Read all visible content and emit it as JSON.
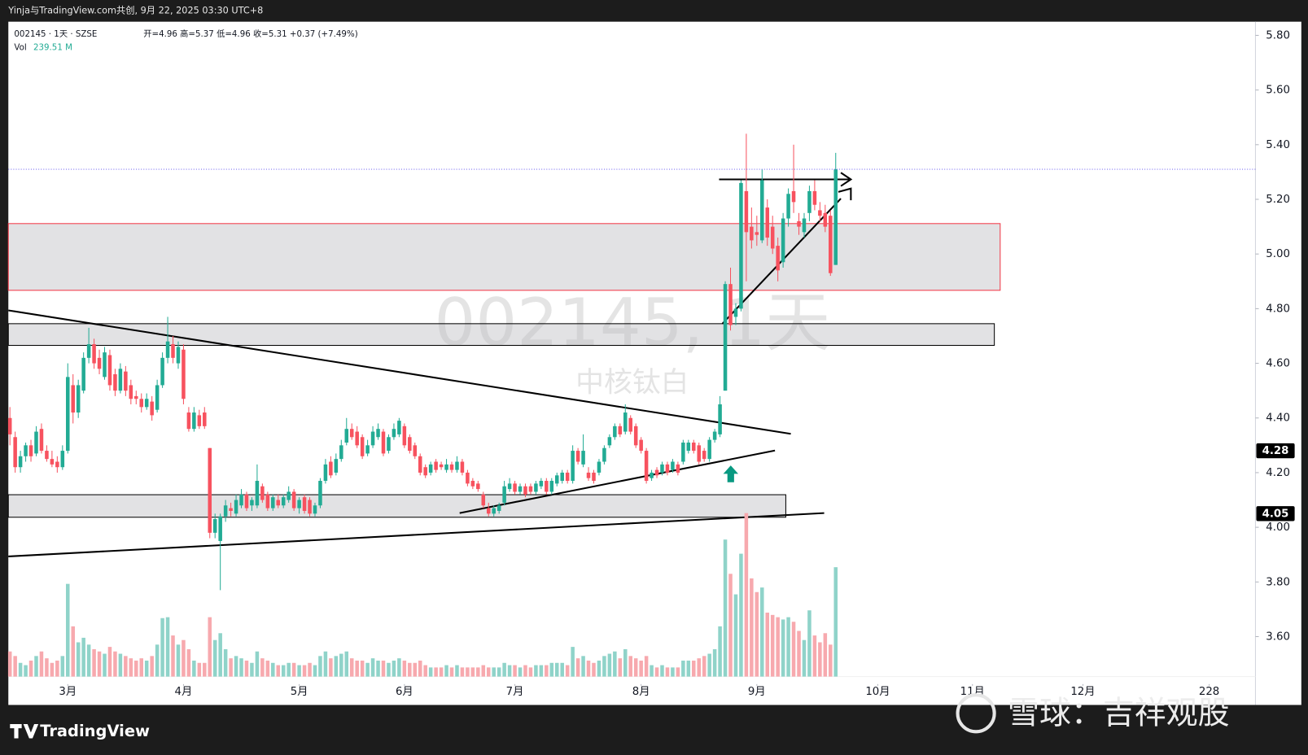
{
  "header": {
    "credit": "Yinja与TradingView.com共创, 9月 22, 2025 03:30 UTC+8"
  },
  "chart_data": {
    "type": "candlestick",
    "symbol_line": "002145 · 1天 · SZSE",
    "ohlc_line": "开=4.96 高=5.37 低=4.96 收=5.31 +0.37 (+7.49%)",
    "volume_name": "Vol",
    "volume_label": "239.51 M",
    "watermark": "002145, 1天",
    "watermark_name": "中核钛白",
    "up_color": "#22ab94",
    "down_color": "#f7525f",
    "up_volume_color": "#8fd3c9",
    "down_volume_color": "#f7a9ae",
    "grid": false,
    "open": [
      4.4,
      4.33,
      4.22,
      4.26,
      4.3,
      4.27,
      4.36,
      4.28,
      4.25,
      4.24,
      4.22,
      4.28,
      4.52,
      4.42,
      4.5,
      4.62,
      4.67,
      4.62,
      4.55,
      4.63,
      4.56,
      4.5,
      4.57,
      4.52,
      4.48,
      4.47,
      4.44,
      4.46,
      4.43,
      4.52,
      4.62,
      4.67,
      4.6,
      4.65,
      4.42,
      4.36,
      4.41,
      4.42,
      4.29,
      3.98,
      3.95,
      4.04,
      4.07,
      4.05,
      4.08,
      4.12,
      4.08,
      4.08,
      4.15,
      4.12,
      4.07,
      4.1,
      4.08,
      4.1,
      4.13,
      4.07,
      4.11,
      4.1,
      4.05,
      4.08,
      4.17,
      4.24,
      4.2,
      4.25,
      4.31,
      4.36,
      4.35,
      4.33,
      4.27,
      4.3,
      4.33,
      4.35,
      4.28,
      4.33,
      4.34,
      4.37,
      4.33,
      4.3,
      4.26,
      4.22,
      4.2,
      4.24,
      4.23,
      4.21,
      4.23,
      4.21,
      4.24,
      4.2,
      4.17,
      4.16,
      4.12,
      4.07,
      4.05,
      4.06,
      4.09,
      4.14,
      4.16,
      4.13,
      4.15,
      4.15,
      4.13,
      4.15,
      4.17,
      4.13,
      4.16,
      4.17,
      4.2,
      4.17,
      4.28,
      4.23,
      4.2,
      4.2,
      4.2,
      4.24,
      4.3,
      4.33,
      4.37,
      4.35,
      4.4,
      4.37,
      4.32,
      4.28,
      4.18,
      4.21,
      4.2,
      4.23,
      4.21,
      4.23,
      4.24,
      4.28,
      4.31,
      4.3,
      4.28,
      4.25,
      4.32,
      4.34,
      4.5,
      4.89,
      4.77,
      4.8,
      5.23,
      5.1,
      5.08,
      5.05,
      5.17,
      5.1,
      5.03,
      4.97,
      5.13,
      5.23,
      5.12,
      5.08,
      5.15,
      5.23,
      5.16,
      5.15,
      5.14,
      4.96
    ],
    "high": [
      4.44,
      4.35,
      4.28,
      4.31,
      4.32,
      4.37,
      4.38,
      4.3,
      4.28,
      4.26,
      4.3,
      4.6,
      4.56,
      4.54,
      4.64,
      4.73,
      4.69,
      4.65,
      4.66,
      4.65,
      4.58,
      4.6,
      4.59,
      4.54,
      4.5,
      4.49,
      4.49,
      4.48,
      4.54,
      4.64,
      4.77,
      4.7,
      4.68,
      4.67,
      4.44,
      4.44,
      4.43,
      4.44,
      4.29,
      4.05,
      4.05,
      4.1,
      4.09,
      4.12,
      4.14,
      4.13,
      4.11,
      4.23,
      4.16,
      4.13,
      4.12,
      4.12,
      4.12,
      4.15,
      4.14,
      4.11,
      4.12,
      4.11,
      4.09,
      4.18,
      4.25,
      4.26,
      4.27,
      4.32,
      4.4,
      4.38,
      4.37,
      4.34,
      4.32,
      4.37,
      4.38,
      4.36,
      4.34,
      4.38,
      4.4,
      4.38,
      4.34,
      4.31,
      4.27,
      4.23,
      4.24,
      4.25,
      4.24,
      4.25,
      4.24,
      4.26,
      4.25,
      4.21,
      4.18,
      4.17,
      4.13,
      4.09,
      4.08,
      4.09,
      4.17,
      4.18,
      4.17,
      4.16,
      4.16,
      4.16,
      4.17,
      4.18,
      4.18,
      4.18,
      4.2,
      4.21,
      4.21,
      4.3,
      4.29,
      4.34,
      4.22,
      4.21,
      4.25,
      4.3,
      4.34,
      4.38,
      4.38,
      4.45,
      4.41,
      4.38,
      4.33,
      4.29,
      4.21,
      4.22,
      4.24,
      4.24,
      4.25,
      4.24,
      4.32,
      4.32,
      4.32,
      4.31,
      4.29,
      4.33,
      4.36,
      4.48,
      4.9,
      4.95,
      4.82,
      5.27,
      5.44,
      5.17,
      5.14,
      5.31,
      5.2,
      5.14,
      5.06,
      5.15,
      5.24,
      5.4,
      5.15,
      5.15,
      5.25,
      5.27,
      5.19,
      5.18,
      5.16,
      5.37
    ],
    "low": [
      4.3,
      4.2,
      4.2,
      4.24,
      4.24,
      4.26,
      4.27,
      4.24,
      4.22,
      4.2,
      4.21,
      4.27,
      4.38,
      4.4,
      4.49,
      4.6,
      4.58,
      4.56,
      4.54,
      4.5,
      4.48,
      4.49,
      4.48,
      4.45,
      4.45,
      4.42,
      4.43,
      4.39,
      4.42,
      4.51,
      4.6,
      4.6,
      4.58,
      4.45,
      4.35,
      4.35,
      4.36,
      4.36,
      3.96,
      3.96,
      3.77,
      4.02,
      4.04,
      4.04,
      4.07,
      4.06,
      4.06,
      4.07,
      4.09,
      4.06,
      4.06,
      4.07,
      4.07,
      4.09,
      4.06,
      4.05,
      4.05,
      4.04,
      4.04,
      4.07,
      4.16,
      4.18,
      4.19,
      4.24,
      4.3,
      4.32,
      4.29,
      4.25,
      4.26,
      4.29,
      4.32,
      4.26,
      4.27,
      4.32,
      4.33,
      4.29,
      4.27,
      4.25,
      4.19,
      4.18,
      4.19,
      4.2,
      4.21,
      4.2,
      4.2,
      4.2,
      4.19,
      4.15,
      4.14,
      4.13,
      4.07,
      4.04,
      4.04,
      4.05,
      4.08,
      4.13,
      4.12,
      4.12,
      4.11,
      4.12,
      4.12,
      4.14,
      4.12,
      4.12,
      4.15,
      4.16,
      4.16,
      4.16,
      4.23,
      4.22,
      4.17,
      4.16,
      4.19,
      4.23,
      4.29,
      4.32,
      4.33,
      4.34,
      4.34,
      4.29,
      4.27,
      4.16,
      4.17,
      4.18,
      4.19,
      4.19,
      4.2,
      4.19,
      4.23,
      4.27,
      4.27,
      4.23,
      4.24,
      4.24,
      4.31,
      4.33,
      4.5,
      4.72,
      4.74,
      4.79,
      4.9,
      5.02,
      5.03,
      5.04,
      5.03,
      5.0,
      4.9,
      4.95,
      5.1,
      5.15,
      5.07,
      5.06,
      5.12,
      5.16,
      5.12,
      5.08,
      4.92,
      4.96
    ],
    "close": [
      4.34,
      4.22,
      4.26,
      4.3,
      4.26,
      4.35,
      4.28,
      4.25,
      4.23,
      4.22,
      4.28,
      4.55,
      4.42,
      4.52,
      4.62,
      4.67,
      4.6,
      4.58,
      4.64,
      4.52,
      4.5,
      4.58,
      4.5,
      4.47,
      4.47,
      4.44,
      4.47,
      4.41,
      4.52,
      4.62,
      4.68,
      4.62,
      4.66,
      4.47,
      4.36,
      4.42,
      4.37,
      4.37,
      3.98,
      4.03,
      4.04,
      4.08,
      4.06,
      4.1,
      4.12,
      4.07,
      4.1,
      4.17,
      4.1,
      4.07,
      4.11,
      4.08,
      4.11,
      4.13,
      4.07,
      4.1,
      4.06,
      4.05,
      4.08,
      4.17,
      4.23,
      4.19,
      4.25,
      4.3,
      4.36,
      4.33,
      4.3,
      4.26,
      4.3,
      4.35,
      4.36,
      4.27,
      4.33,
      4.36,
      4.39,
      4.3,
      4.28,
      4.26,
      4.2,
      4.19,
      4.23,
      4.21,
      4.22,
      4.23,
      4.21,
      4.24,
      4.2,
      4.16,
      4.15,
      4.14,
      4.08,
      4.05,
      4.07,
      4.08,
      4.15,
      4.16,
      4.13,
      4.15,
      4.12,
      4.13,
      4.16,
      4.17,
      4.13,
      4.17,
      4.19,
      4.2,
      4.17,
      4.28,
      4.24,
      4.28,
      4.18,
      4.17,
      4.24,
      4.29,
      4.33,
      4.37,
      4.34,
      4.42,
      4.35,
      4.3,
      4.28,
      4.17,
      4.2,
      4.19,
      4.23,
      4.2,
      4.24,
      4.2,
      4.31,
      4.31,
      4.28,
      4.24,
      4.25,
      4.32,
      4.35,
      4.45,
      4.89,
      4.74,
      4.8,
      5.26,
      5.08,
      5.05,
      5.07,
      5.27,
      5.06,
      5.02,
      4.94,
      5.13,
      5.22,
      5.19,
      5.1,
      5.13,
      5.23,
      5.18,
      5.14,
      5.1,
      4.93,
      5.31
    ],
    "volume": [
      55,
      45,
      30,
      25,
      35,
      45,
      55,
      40,
      30,
      35,
      45,
      203,
      110,
      75,
      85,
      70,
      60,
      55,
      50,
      65,
      55,
      50,
      45,
      40,
      35,
      40,
      35,
      45,
      70,
      128,
      130,
      90,
      70,
      80,
      60,
      35,
      30,
      30,
      130,
      80,
      95,
      60,
      40,
      45,
      40,
      35,
      30,
      55,
      40,
      35,
      30,
      25,
      25,
      30,
      30,
      25,
      25,
      30,
      25,
      45,
      55,
      40,
      45,
      50,
      55,
      40,
      35,
      35,
      30,
      40,
      35,
      35,
      30,
      35,
      40,
      35,
      30,
      30,
      35,
      25,
      20,
      20,
      20,
      25,
      20,
      25,
      20,
      20,
      20,
      20,
      25,
      20,
      20,
      20,
      30,
      25,
      25,
      20,
      25,
      20,
      25,
      25,
      25,
      30,
      30,
      30,
      25,
      65,
      40,
      45,
      35,
      30,
      35,
      45,
      50,
      55,
      40,
      60,
      45,
      40,
      35,
      45,
      25,
      20,
      25,
      20,
      20,
      20,
      35,
      35,
      35,
      40,
      45,
      50,
      60,
      110,
      300,
      225,
      180,
      269,
      358,
      215,
      185,
      195,
      140,
      135,
      130,
      125,
      130,
      120,
      100,
      80,
      145,
      90,
      75,
      95,
      70,
      239.51
    ],
    "xlim": [
      -0.3,
      236.8
    ],
    "xticks": [
      {
        "value": 11,
        "label": "3月"
      },
      {
        "value": 33,
        "label": "4月"
      },
      {
        "value": 55,
        "label": "5月"
      },
      {
        "value": 75,
        "label": "6月"
      },
      {
        "value": 96,
        "label": "7月"
      },
      {
        "value": 120,
        "label": "8月"
      },
      {
        "value": 142,
        "label": "9月"
      },
      {
        "value": 165,
        "label": "10月"
      },
      {
        "value": 183,
        "label": "11月"
      },
      {
        "value": 204,
        "label": "12月"
      },
      228
    ],
    "ylim": [
      3.35,
      5.85
    ],
    "yticks": [
      {
        "value": 3.6,
        "label": "3.60"
      },
      {
        "value": 3.8,
        "label": "3.80"
      },
      {
        "value": 4.0,
        "label": "4.00"
      },
      {
        "value": 4.2,
        "label": "4.20"
      },
      {
        "value": 4.4,
        "label": "4.40"
      },
      {
        "value": 4.6,
        "label": "4.60"
      },
      {
        "value": 4.8,
        "label": "4.80"
      },
      {
        "value": 5.0,
        "label": "5.00"
      },
      {
        "value": 5.2,
        "label": "5.20"
      },
      {
        "value": 5.4,
        "label": "5.40"
      },
      {
        "value": 5.6,
        "label": "5.60"
      },
      {
        "value": 5.8,
        "label": "5.80"
      }
    ],
    "price_labels": [
      4.28,
      4.05
    ]
  },
  "footer": {
    "brand": "TradingView",
    "watermark": "雪球：吉祥观股"
  }
}
